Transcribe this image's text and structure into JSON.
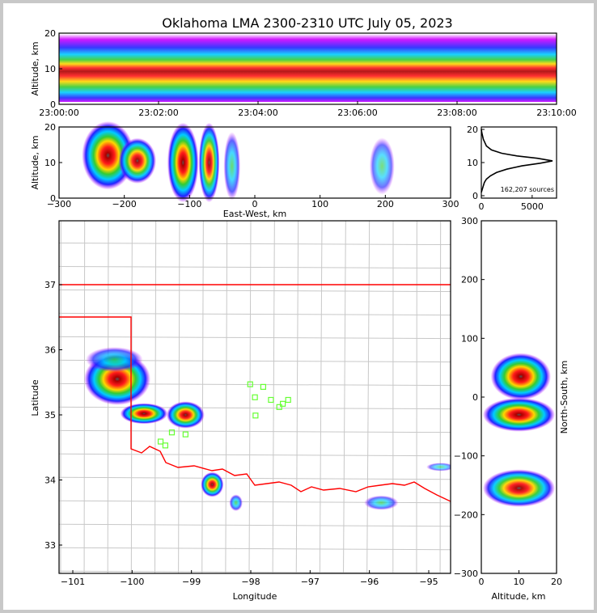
{
  "chart_data": [
    {
      "type": "heatmap",
      "name": "altitude-vs-time",
      "title": "Oklahoma LMA 2300-2310 UTC July 05, 2023",
      "ylabel": "Altitude, km",
      "ylim": [
        0,
        20
      ],
      "yticks": [
        "0",
        "10",
        "20"
      ],
      "xticks": [
        "23:00:00",
        "23:02:00",
        "23:04:00",
        "23:06:00",
        "23:08:00",
        "23:10:00"
      ],
      "xlim_minutes": [
        0,
        10
      ],
      "peak_altitude_km": 10.5
    },
    {
      "type": "heatmap",
      "name": "altitude-vs-east-west",
      "xlabel": "East-West, km",
      "ylabel": "Altitude, km",
      "xlim": [
        -300,
        300
      ],
      "ylim": [
        0,
        20
      ],
      "xticks": [
        "−300",
        "−200",
        "−100",
        "0",
        "100",
        "200",
        "300"
      ],
      "yticks": [
        "0",
        "10",
        "20"
      ],
      "clusters": [
        {
          "x": -225,
          "y": 12,
          "rx": 25,
          "ry": 6,
          "intensity": 1.0
        },
        {
          "x": -180,
          "y": 10.5,
          "rx": 18,
          "ry": 4,
          "intensity": 0.9
        },
        {
          "x": -110,
          "y": 10,
          "rx": 15,
          "ry": 7,
          "intensity": 1.0
        },
        {
          "x": -70,
          "y": 10,
          "rx": 10,
          "ry": 7,
          "intensity": 0.85
        },
        {
          "x": -35,
          "y": 9,
          "rx": 8,
          "ry": 6,
          "intensity": 0.45
        },
        {
          "x": 195,
          "y": 9,
          "rx": 12,
          "ry": 5,
          "intensity": 0.3
        }
      ]
    },
    {
      "type": "line",
      "name": "altitude-histogram",
      "annotation": "162,207 sources",
      "xlim": [
        0,
        7400
      ],
      "ylim": [
        0,
        20
      ],
      "xticks": [
        "0",
        "5000"
      ],
      "yticks": [
        "0",
        "10",
        "20"
      ],
      "x": [
        0,
        100,
        200,
        300,
        500,
        900,
        1500,
        2500,
        4000,
        5800,
        7000,
        5500,
        3500,
        2000,
        1000,
        500,
        200,
        50,
        0
      ],
      "y": [
        1,
        2,
        3,
        4,
        5,
        6,
        7,
        8,
        9,
        9.8,
        10.5,
        11.3,
        12,
        12.8,
        13.8,
        15,
        17,
        19,
        20
      ]
    },
    {
      "type": "scatter",
      "name": "plan-view-map",
      "xlabel": "Longitude",
      "ylabel": "Latitude",
      "xlim": [
        -101.23,
        -94.62
      ],
      "ylim": [
        32.57,
        37.98
      ],
      "xticks": [
        "−101",
        "−100",
        "−99",
        "−98",
        "−97",
        "−96",
        "−95"
      ],
      "yticks": [
        "33",
        "34",
        "35",
        "36",
        "37"
      ],
      "stations": [
        [
          -98.01,
          35.47
        ],
        [
          -97.79,
          35.43
        ],
        [
          -97.93,
          35.27
        ],
        [
          -97.66,
          35.23
        ],
        [
          -97.37,
          35.23
        ],
        [
          -97.46,
          35.17
        ],
        [
          -97.52,
          35.12
        ],
        [
          -97.92,
          34.99
        ],
        [
          -99.33,
          34.73
        ],
        [
          -99.52,
          34.59
        ],
        [
          -99.44,
          34.53
        ],
        [
          -99.1,
          34.7
        ]
      ],
      "clusters": [
        {
          "x": -100.25,
          "y": 35.55,
          "rx": 0.35,
          "ry": 0.25,
          "intensity": 1.0
        },
        {
          "x": -100.3,
          "y": 35.85,
          "rx": 0.3,
          "ry": 0.12,
          "intensity": 0.5
        },
        {
          "x": -99.8,
          "y": 35.02,
          "rx": 0.25,
          "ry": 0.1,
          "intensity": 1.0
        },
        {
          "x": -99.1,
          "y": 35.0,
          "rx": 0.2,
          "ry": 0.13,
          "intensity": 0.95
        },
        {
          "x": -98.65,
          "y": 33.93,
          "rx": 0.12,
          "ry": 0.12,
          "intensity": 0.9
        },
        {
          "x": -98.25,
          "y": 33.65,
          "rx": 0.07,
          "ry": 0.08,
          "intensity": 0.5
        },
        {
          "x": -95.8,
          "y": 33.65,
          "rx": 0.18,
          "ry": 0.07,
          "intensity": 0.35
        },
        {
          "x": -94.8,
          "y": 34.2,
          "rx": 0.15,
          "ry": 0.04,
          "intensity": 0.2
        }
      ]
    },
    {
      "type": "heatmap",
      "name": "north-south-vs-altitude",
      "xlabel": "Altitude, km",
      "ylabel": "North-South, km",
      "xlim": [
        0,
        20
      ],
      "ylim": [
        -300,
        300
      ],
      "xticks": [
        "0",
        "10",
        "20"
      ],
      "yticks": [
        "−300",
        "−200",
        "−100",
        "0",
        "100",
        "200",
        "300"
      ],
      "clusters": [
        {
          "x": 10.5,
          "y": 35,
          "rx": 5,
          "ry": 25,
          "intensity": 1.0
        },
        {
          "x": 10,
          "y": -30,
          "rx": 6,
          "ry": 18,
          "intensity": 1.0
        },
        {
          "x": 10,
          "y": -155,
          "rx": 6,
          "ry": 20,
          "intensity": 0.9
        }
      ]
    }
  ],
  "colors": {
    "border": "#ff0000",
    "counties": "#c8c8c8",
    "stations": "#66ff33"
  }
}
